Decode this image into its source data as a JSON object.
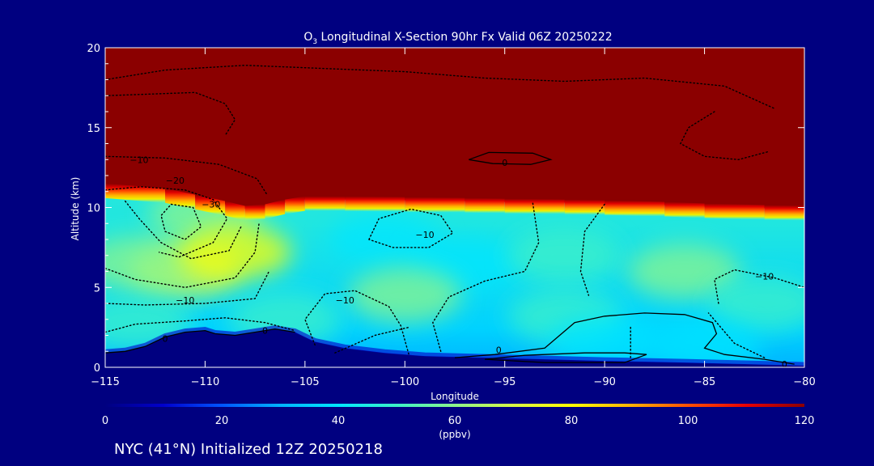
{
  "chart_data": {
    "type": "heatmap",
    "title_prefix": "O",
    "title_sub": "3",
    "title_rest": " Longitudinal X-Section 90hr  Fx Valid 06Z 20250222",
    "xlabel": "Longitude",
    "ylabel": "Altitude (km)",
    "xlim": [
      -115,
      -80
    ],
    "ylim": [
      0,
      20
    ],
    "x_ticks": [
      -115,
      -110,
      -105,
      -100,
      -95,
      -90,
      -85,
      -80
    ],
    "x_tick_labels": [
      "−115",
      "−110",
      "−105",
      "−100",
      "−95",
      "−90",
      "−85",
      "−80"
    ],
    "y_ticks": [
      0,
      5,
      10,
      15,
      20
    ],
    "y_tick_labels": [
      "0",
      "5",
      "10",
      "15",
      "20"
    ],
    "colorbar": {
      "min": 0,
      "max": 120,
      "ticks": [
        0,
        20,
        40,
        60,
        80,
        100,
        120
      ],
      "tick_labels": [
        "0",
        "20",
        "40",
        "60",
        "80",
        "100",
        "120"
      ],
      "units": "(ppbv)"
    },
    "tropopause_km": [
      [
        -115,
        11.3
      ],
      [
        -112,
        11.0
      ],
      [
        -110.5,
        10.6
      ],
      [
        -109,
        10.2
      ],
      [
        -108,
        9.9
      ],
      [
        -107,
        10.0
      ],
      [
        -106,
        10.3
      ],
      [
        -105,
        10.5
      ],
      [
        -103,
        10.5
      ],
      [
        -100,
        10.45
      ],
      [
        -97,
        10.4
      ],
      [
        -95,
        10.35
      ],
      [
        -92,
        10.3
      ],
      [
        -90,
        10.25
      ],
      [
        -87,
        10.15
      ],
      [
        -85,
        10.05
      ],
      [
        -82,
        9.95
      ],
      [
        -80,
        9.9
      ]
    ],
    "terrain_km": [
      [
        -115,
        0.9
      ],
      [
        -114,
        1.0
      ],
      [
        -113,
        1.3
      ],
      [
        -112,
        1.9
      ],
      [
        -111,
        2.2
      ],
      [
        -110,
        2.3
      ],
      [
        -109.5,
        2.1
      ],
      [
        -108.5,
        2.0
      ],
      [
        -107.5,
        2.2
      ],
      [
        -106.5,
        2.4
      ],
      [
        -105.5,
        2.2
      ],
      [
        -104.5,
        1.6
      ],
      [
        -103,
        1.2
      ],
      [
        -101,
        0.9
      ],
      [
        -99,
        0.7
      ],
      [
        -96,
        0.6
      ],
      [
        -93,
        0.5
      ],
      [
        -90,
        0.4
      ],
      [
        -86,
        0.3
      ],
      [
        -83,
        0.2
      ],
      [
        -80,
        0.1
      ]
    ],
    "ozone_cells": [
      {
        "lon": -111.0,
        "alt": 6.0,
        "value": 72
      },
      {
        "lon": -110.0,
        "alt": 9.5,
        "value": 64
      },
      {
        "lon": -113.5,
        "alt": 6.5,
        "value": 58
      },
      {
        "lon": -108.5,
        "alt": 7.2,
        "value": 78
      },
      {
        "lon": -101.0,
        "alt": 8.0,
        "value": 38
      },
      {
        "lon": -97.0,
        "alt": 6.5,
        "value": 44
      },
      {
        "lon": -100.0,
        "alt": 4.5,
        "value": 58
      },
      {
        "lon": -92.0,
        "alt": 7.0,
        "value": 50
      },
      {
        "lon": -86.0,
        "alt": 6.0,
        "value": 56
      },
      {
        "lon": -82.0,
        "alt": 4.0,
        "value": 54
      },
      {
        "lon": -92.0,
        "alt": 3.2,
        "value": 46
      },
      {
        "lon": -106.0,
        "alt": 3.0,
        "value": 48
      },
      {
        "lon": -113.5,
        "alt": 2.8,
        "value": 45
      },
      {
        "lon": -90.0,
        "alt": 1.5,
        "value": 40
      },
      {
        "lon": -85.0,
        "alt": 1.2,
        "value": 38
      }
    ],
    "contour_labels": [
      {
        "lon": -113.3,
        "alt": 13.0,
        "text": "−10"
      },
      {
        "lon": -111.5,
        "alt": 11.7,
        "text": "−20"
      },
      {
        "lon": -109.7,
        "alt": 10.2,
        "text": "−30"
      },
      {
        "lon": -95.0,
        "alt": 12.8,
        "text": "0"
      },
      {
        "lon": -99.0,
        "alt": 8.3,
        "text": "−10"
      },
      {
        "lon": -111.0,
        "alt": 4.2,
        "text": "−10"
      },
      {
        "lon": -103.0,
        "alt": 4.2,
        "text": "−10"
      },
      {
        "lon": -82.0,
        "alt": 5.7,
        "text": "−10"
      },
      {
        "lon": -112.0,
        "alt": 1.8,
        "text": "0"
      },
      {
        "lon": -107.0,
        "alt": 2.3,
        "text": "0"
      },
      {
        "lon": -95.3,
        "alt": 1.1,
        "text": "0"
      },
      {
        "lon": -81.0,
        "alt": 0.2,
        "text": "0"
      }
    ],
    "solid_contours": [
      [
        [
          -96.8,
          13.0
        ],
        [
          -95.8,
          13.45
        ],
        [
          -93.6,
          13.4
        ],
        [
          -92.7,
          13.0
        ],
        [
          -93.7,
          12.7
        ],
        [
          -95.6,
          12.75
        ],
        [
          -96.8,
          13.0
        ]
      ],
      [
        [
          -97.5,
          0.6
        ],
        [
          -95.5,
          0.8
        ],
        [
          -93,
          1.2
        ],
        [
          -91.5,
          2.8
        ],
        [
          -90,
          3.2
        ],
        [
          -88,
          3.4
        ],
        [
          -86,
          3.3
        ],
        [
          -84.6,
          2.8
        ],
        [
          -84.4,
          2.1
        ],
        [
          -85.0,
          1.2
        ],
        [
          -84.0,
          0.8
        ],
        [
          -82,
          0.5
        ],
        [
          -80.5,
          0.2
        ]
      ],
      [
        [
          -96,
          0.5
        ],
        [
          -94,
          0.75
        ],
        [
          -91,
          0.9
        ],
        [
          -89,
          0.9
        ],
        [
          -87.9,
          0.8
        ],
        [
          -89,
          0.3
        ],
        [
          -93,
          0.3
        ],
        [
          -96,
          0.5
        ]
      ],
      [
        [
          -115,
          0.9
        ],
        [
          -114,
          1.0
        ],
        [
          -113,
          1.3
        ],
        [
          -112,
          1.9
        ],
        [
          -111,
          2.2
        ],
        [
          -110,
          2.3
        ],
        [
          -109.5,
          2.1
        ],
        [
          -108.5,
          2.0
        ],
        [
          -107.5,
          2.2
        ],
        [
          -106.5,
          2.4
        ],
        [
          -105.5,
          2.2
        ]
      ]
    ],
    "dotted_contours": [
      [
        [
          -115,
          18
        ],
        [
          -112,
          18.6
        ],
        [
          -108,
          18.9
        ],
        [
          -104,
          18.7
        ],
        [
          -100,
          18.5
        ],
        [
          -96,
          18.1
        ],
        [
          -92,
          17.9
        ],
        [
          -88,
          18.1
        ],
        [
          -84,
          17.6
        ],
        [
          -81.5,
          16.2
        ]
      ],
      [
        [
          -84.5,
          16.0
        ],
        [
          -85.8,
          15.0
        ],
        [
          -86.2,
          14.0
        ],
        [
          -85.0,
          13.2
        ],
        [
          -83.3,
          13.0
        ],
        [
          -81.8,
          13.5
        ]
      ],
      [
        [
          -115,
          17.0
        ],
        [
          -110.5,
          17.2
        ],
        [
          -109,
          16.5
        ],
        [
          -108.5,
          15.5
        ],
        [
          -109.0,
          14.5
        ]
      ],
      [
        [
          -115,
          13.2
        ],
        [
          -112,
          13.1
        ],
        [
          -109.3,
          12.7
        ],
        [
          -107.4,
          11.8
        ],
        [
          -106.9,
          10.8
        ]
      ],
      [
        [
          -115,
          11.1
        ],
        [
          -113.2,
          11.3
        ],
        [
          -111.0,
          11.1
        ],
        [
          -109.6,
          10.5
        ],
        [
          -108.9,
          9.3
        ],
        [
          -109.6,
          7.8
        ],
        [
          -111.3,
          6.9
        ],
        [
          -112.3,
          7.2
        ]
      ],
      [
        [
          -111.7,
          10.2
        ],
        [
          -110.6,
          10.0
        ],
        [
          -110.2,
          8.8
        ],
        [
          -111.0,
          8.0
        ],
        [
          -112.0,
          8.5
        ],
        [
          -112.2,
          9.5
        ],
        [
          -111.7,
          10.2
        ]
      ],
      [
        [
          -114.0,
          10.4
        ],
        [
          -113.3,
          9.3
        ],
        [
          -112.2,
          7.8
        ],
        [
          -110.7,
          6.8
        ],
        [
          -108.8,
          7.3
        ],
        [
          -108.2,
          8.8
        ]
      ],
      [
        [
          -115,
          6.2
        ],
        [
          -113.5,
          5.5
        ],
        [
          -111.0,
          5.0
        ],
        [
          -108.5,
          5.6
        ],
        [
          -107.5,
          7.2
        ],
        [
          -107.3,
          9.0
        ]
      ],
      [
        [
          -115,
          4.0
        ],
        [
          -113.0,
          3.9
        ],
        [
          -110.0,
          4.0
        ],
        [
          -107.5,
          4.3
        ],
        [
          -106.8,
          6.0
        ]
      ],
      [
        [
          -104.5,
          1.4
        ],
        [
          -105.0,
          3.0
        ],
        [
          -104.0,
          4.6
        ],
        [
          -102.5,
          4.8
        ],
        [
          -100.8,
          3.8
        ],
        [
          -100.2,
          2.6
        ],
        [
          -99.8,
          0.8
        ]
      ],
      [
        [
          -101.8,
          8.0
        ],
        [
          -101.3,
          9.3
        ],
        [
          -99.7,
          9.9
        ],
        [
          -98.2,
          9.5
        ],
        [
          -97.6,
          8.4
        ],
        [
          -98.8,
          7.5
        ],
        [
          -100.6,
          7.5
        ],
        [
          -101.8,
          8.0
        ]
      ],
      [
        [
          -98.2,
          1.0
        ],
        [
          -98.6,
          2.8
        ],
        [
          -97.8,
          4.4
        ],
        [
          -96.0,
          5.4
        ],
        [
          -94.0,
          6.0
        ],
        [
          -93.3,
          7.8
        ],
        [
          -93.6,
          10.3
        ]
      ],
      [
        [
          -90.0,
          10.2
        ],
        [
          -91.0,
          8.5
        ],
        [
          -91.2,
          6.0
        ],
        [
          -90.8,
          4.5
        ]
      ],
      [
        [
          -88.7,
          0.6
        ],
        [
          -88.7,
          2.5
        ]
      ],
      [
        [
          -115,
          2.2
        ],
        [
          -113.5,
          2.7
        ],
        [
          -111.0,
          2.9
        ],
        [
          -109.0,
          3.1
        ],
        [
          -107.0,
          2.8
        ],
        [
          -105.5,
          2.3
        ]
      ],
      [
        [
          -84.3,
          4.0
        ],
        [
          -84.5,
          5.5
        ],
        [
          -83.5,
          6.1
        ],
        [
          -81.5,
          5.6
        ],
        [
          -80,
          5.0
        ]
      ],
      [
        [
          -82.0,
          0.6
        ],
        [
          -83.5,
          1.5
        ],
        [
          -84.8,
          3.4
        ]
      ],
      [
        [
          -103.5,
          0.9
        ],
        [
          -101.5,
          2.0
        ],
        [
          -99.8,
          2.5
        ]
      ]
    ],
    "colorscale": [
      "#000080",
      "#0000cc",
      "#0055ff",
      "#00b4ff",
      "#00e6ff",
      "#3cf0c8",
      "#8cf58c",
      "#d7fa46",
      "#ffff00",
      "#ffb400",
      "#ff5000",
      "#e60000",
      "#8b0000"
    ]
  },
  "footer": {
    "location_text": "NYC (41°N) Initialized 12Z 20250218"
  }
}
